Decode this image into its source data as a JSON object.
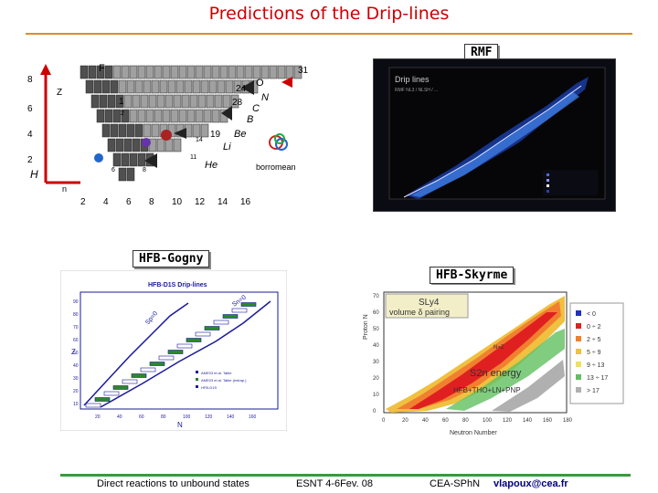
{
  "title": "Predictions of the Drip-lines",
  "labels": {
    "rmf": "RMF",
    "gogny": "HFB-Gogny",
    "skyrme": "HFB-Skyrme"
  },
  "chart_left": {
    "y_ticks": [
      "8",
      "6",
      "4",
      "2"
    ],
    "x_ticks": [
      "2",
      "4",
      "6",
      "8",
      "10",
      "12",
      "14",
      "16"
    ],
    "elements": [
      "F",
      "O",
      "N",
      "C",
      "B",
      "Be",
      "Li",
      "He",
      "H",
      "n"
    ],
    "isotope_labels": [
      "31",
      "24",
      "28",
      "14",
      "11",
      "19",
      "8",
      "6",
      "Z",
      "1",
      "2"
    ],
    "borromean": "borromean",
    "colors": {
      "grid_fill": "#a0a0a0",
      "stable_fill": "#505050",
      "dripline_red": "#cc0000"
    }
  },
  "chart_rmf": {
    "title": "Drip lines",
    "subtitle": "RMF NL3 / NLSH / ..."
  },
  "chart_gogny": {
    "title": "HFB-D1S Drip-lines",
    "x_axis_label": "N",
    "y_axis_label": "Z",
    "x_ticks": [
      "20",
      "40",
      "60",
      "80",
      "100",
      "120",
      "140",
      "160"
    ],
    "y_ticks": [
      "10",
      "20",
      "30",
      "40",
      "50",
      "60",
      "70",
      "80",
      "90"
    ],
    "line_labels": [
      "Sp=0",
      "Sn=0"
    ],
    "legend": [
      "AME03 et al. Table",
      "AME03 et al. Table (extrap.)",
      "HFB-D1S"
    ]
  },
  "chart_skyrme": {
    "y_axis_label": "Proton N",
    "x_axis_label": "Neutron Number",
    "x_ticks": [
      "0",
      "20",
      "40",
      "60",
      "80",
      "100",
      "120",
      "140",
      "160",
      "180"
    ],
    "y_ticks": [
      "0",
      "10",
      "20",
      "30",
      "40",
      "50",
      "60",
      "70"
    ],
    "annotation_top": "SLy4",
    "annotation_top2": "volume δ pairing",
    "annotation_mid": "N=Z",
    "annotation_energy": "S2n energy",
    "annotation_bottom": "HFB+THO+LN+PNP",
    "legend": [
      "< 0",
      "0 ÷ 2",
      "2 ÷ 5",
      "5 ÷ 9",
      "9 ÷ 13",
      "13 ÷ 17",
      "> 17"
    ],
    "legend_colors": [
      "#2030c0",
      "#e02020",
      "#f08030",
      "#f0c040",
      "#f0e060",
      "#60c060",
      "#b0b0b0"
    ]
  },
  "footer": {
    "left": "Direct reactions to unbound states",
    "middle": "ESNT 4-6Fev. 08",
    "org": "CEA-SPhN",
    "email": "vlapoux@cea.fr"
  }
}
